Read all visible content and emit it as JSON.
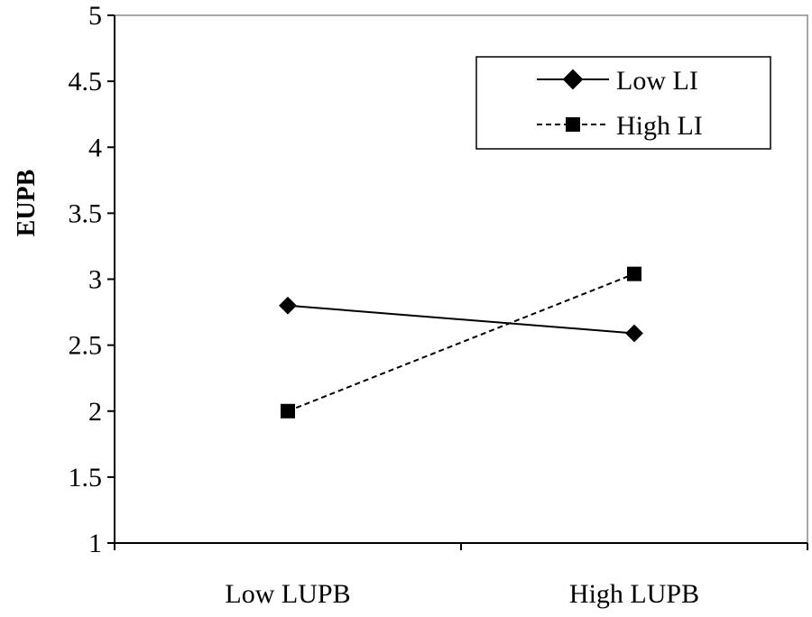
{
  "chart_data": {
    "type": "line",
    "categories": [
      "Low LUPB",
      "High LUPB"
    ],
    "series": [
      {
        "name": "Low LI",
        "values": [
          2.8,
          2.59
        ],
        "marker": "diamond",
        "line": "solid",
        "color": "#000000"
      },
      {
        "name": "High LI",
        "values": [
          2.0,
          3.04
        ],
        "marker": "square",
        "line": "dashed",
        "color": "#000000"
      }
    ],
    "title": "",
    "xlabel": "",
    "ylabel": "EUPB",
    "ylim": [
      1,
      5
    ],
    "yticks": [
      "1",
      "1.5",
      "2",
      "2.5",
      "3",
      "3.5",
      "4",
      "4.5",
      "5"
    ],
    "grid": false,
    "legend_position": "top-right"
  }
}
